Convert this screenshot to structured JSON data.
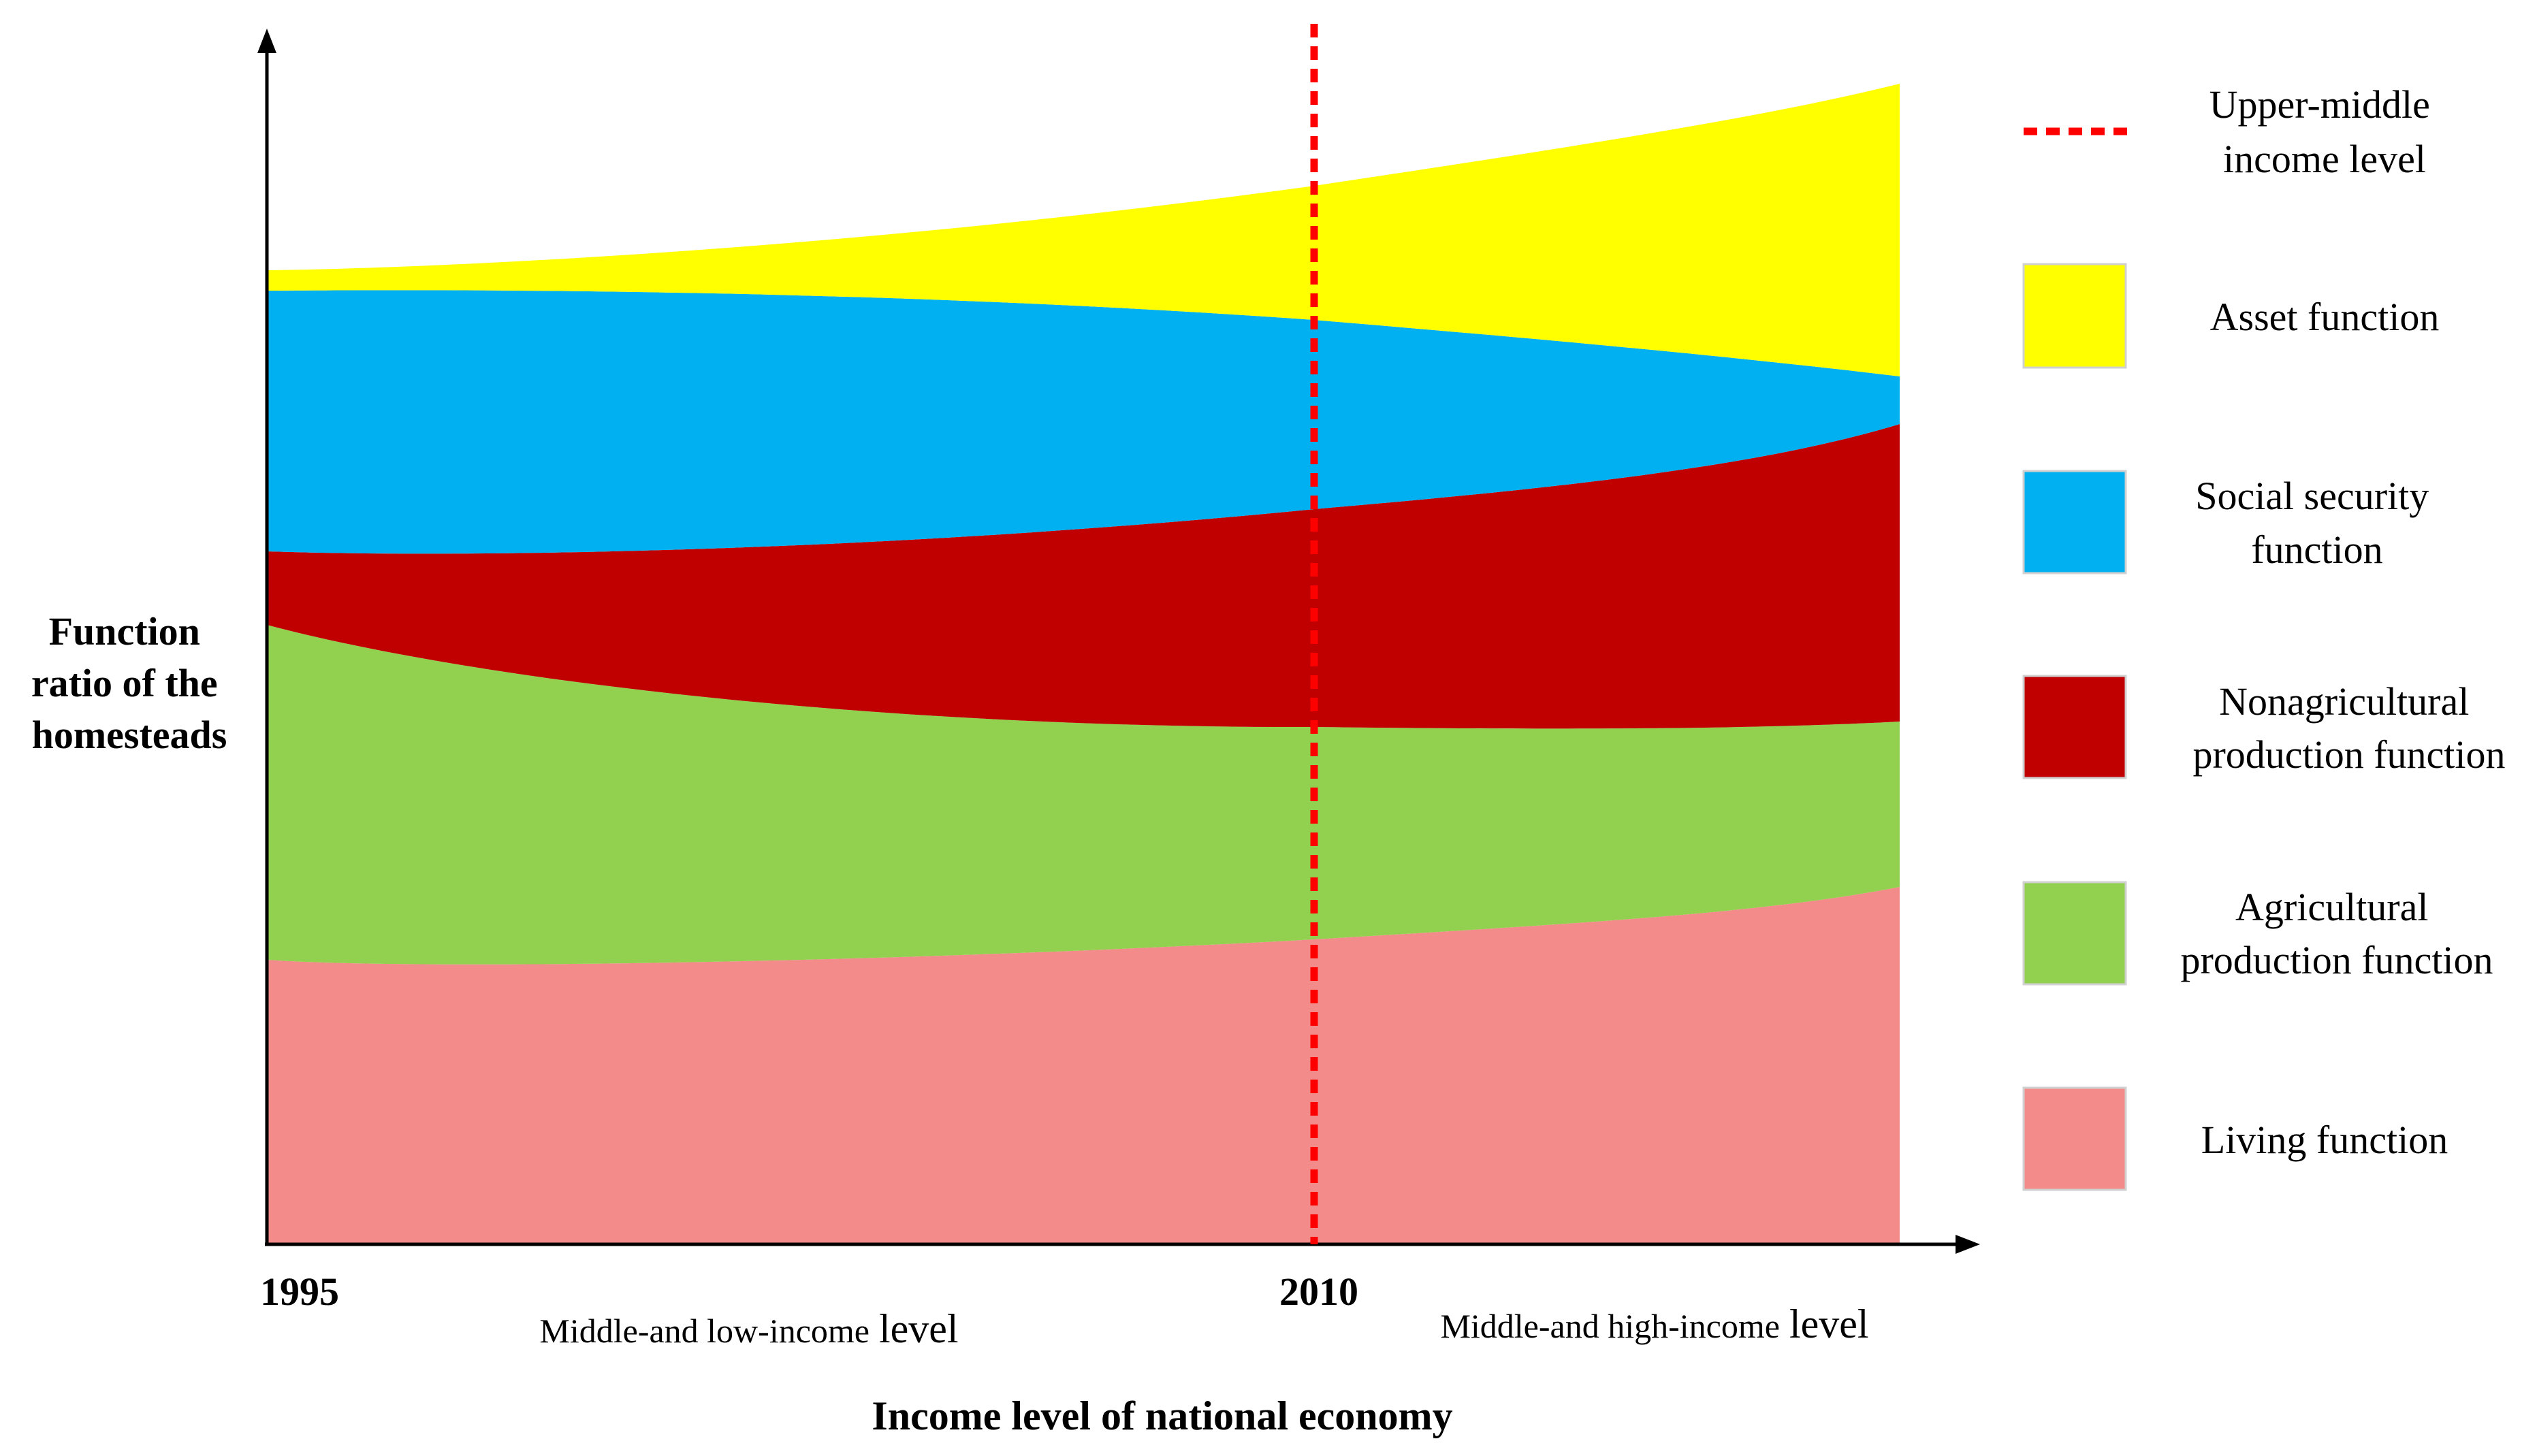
{
  "chart_data": {
    "type": "area",
    "ylabel": [
      "Function",
      "ratio of the",
      "homesteads"
    ],
    "xlabel": "Income level of national economy",
    "x_ticks": [
      "1995",
      "2010"
    ],
    "phases": [
      "Middle-and low-income",
      "Middle-and high-income"
    ],
    "phase_suffix": "level",
    "marker": {
      "label": [
        "Upper-middle",
        "income level"
      ],
      "x": "2010",
      "color": "#ff0000"
    },
    "series": [
      {
        "name": "Living function",
        "label": [
          "Living function"
        ],
        "color": "#f28b89"
      },
      {
        "name": "Agricultural production function",
        "label": [
          "Agricultural",
          "production function"
        ],
        "color": "#92d050"
      },
      {
        "name": "Nonagricultural production function",
        "label": [
          "Nonagricultural",
          "production function"
        ],
        "color": "#c00000"
      },
      {
        "name": "Social security function",
        "label": [
          "Social security",
          "function"
        ],
        "color": "#00b0f0"
      },
      {
        "name": "Asset function",
        "label": [
          "Asset function"
        ],
        "color": "#ffff00"
      }
    ]
  }
}
